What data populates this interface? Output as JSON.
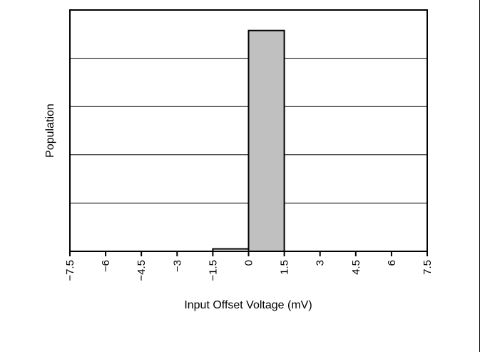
{
  "chart_data": {
    "type": "bar",
    "subtype": "histogram",
    "xlabel": "Input Offset Voltage (mV)",
    "ylabel": "Population",
    "xlim": [
      -7.5,
      7.5
    ],
    "ylim": [
      0,
      100
    ],
    "x_ticks": [
      "-7.5",
      "-6",
      "-4.5",
      "-3",
      "-1.5",
      "0",
      "1.5",
      "3",
      "4.5",
      "6",
      "7.5"
    ],
    "y_ticks_labeled": false,
    "grid": "horizontal",
    "gridlines_y": [
      20,
      40,
      60,
      80
    ],
    "bins": [
      {
        "x_start": -1.5,
        "x_end": 0,
        "value": 1
      },
      {
        "x_start": 0,
        "x_end": 1.5,
        "value": 91.5
      }
    ],
    "colors": {
      "bar_fill": "#c0c0c0",
      "bar_stroke": "#000000",
      "small_bar_fill": "#ffffff",
      "grid": "#000000"
    }
  }
}
